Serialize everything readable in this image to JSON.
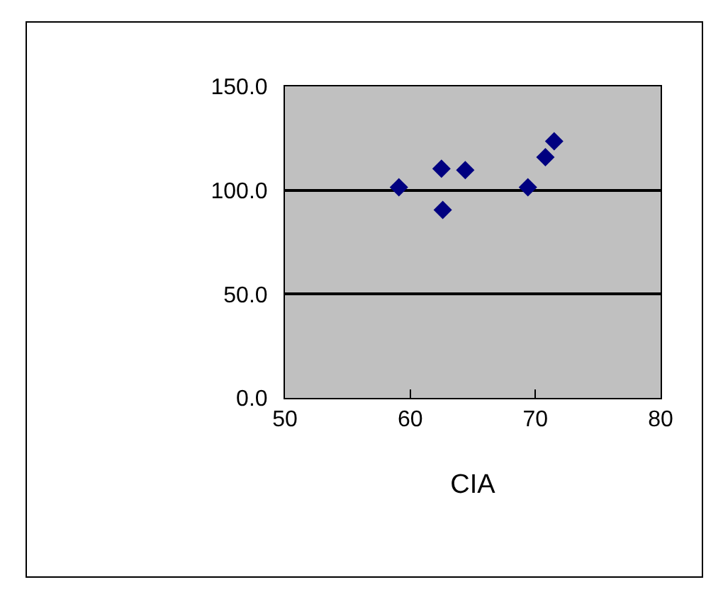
{
  "chart_data": {
    "type": "scatter",
    "xlabel": "CIA",
    "x": [
      59.1,
      62.5,
      62.6,
      64.4,
      69.4,
      70.8,
      71.5
    ],
    "series": [
      {
        "color": "#000080",
        "values": [
          101.4,
          110.4,
          90.5,
          109.7,
          101.4,
          115.9,
          123.6
        ]
      }
    ],
    "xlim": [
      50,
      80
    ],
    "xticks": [
      50,
      60,
      70,
      80
    ],
    "ylim": [
      0,
      150
    ],
    "yticks": [
      {
        "value": 0,
        "label": "0.0"
      },
      {
        "value": 50,
        "label": "50.0"
      },
      {
        "value": 100,
        "label": "100.0"
      },
      {
        "value": 150,
        "label": "150.0"
      }
    ],
    "grid": "y",
    "marker": "diamond"
  }
}
